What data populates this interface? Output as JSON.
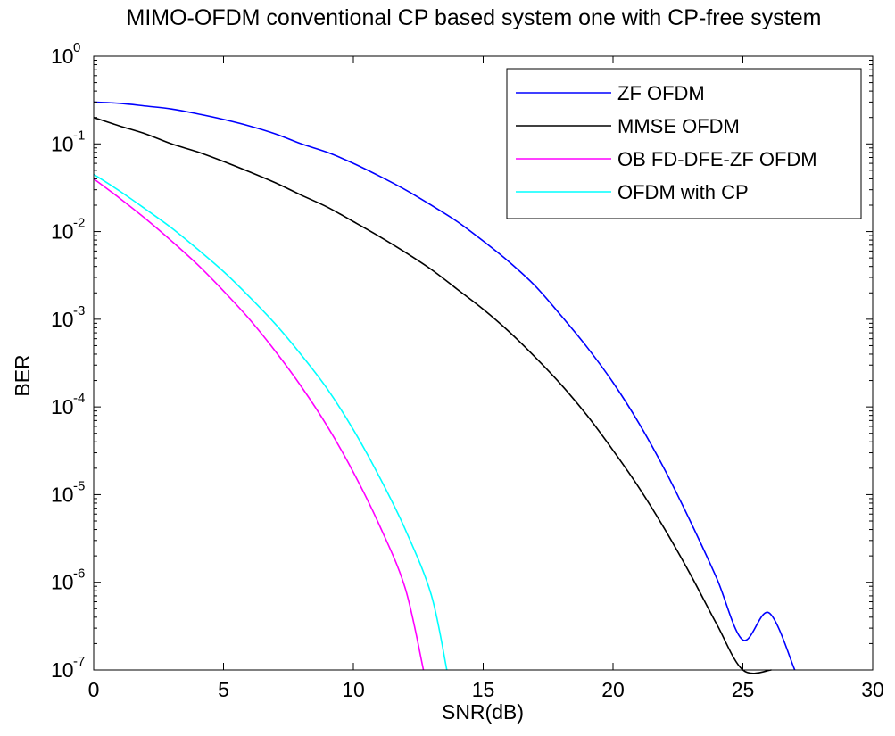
{
  "chart_data": {
    "type": "line",
    "title": "MIMO-OFDM conventional CP based system one with CP-free system",
    "xlabel": "SNR(dB)",
    "ylabel": "BER",
    "xlim": [
      0,
      30
    ],
    "ylim": [
      1e-07,
      1
    ],
    "yscale": "log",
    "grid": false,
    "legend_position": "top-right",
    "x_ticks": [
      0,
      5,
      10,
      15,
      20,
      25,
      30
    ],
    "x_tick_labels": [
      "0",
      "5",
      "10",
      "15",
      "20",
      "25",
      "30"
    ],
    "y_ticks": [
      1e-07,
      1e-06,
      1e-05,
      0.0001,
      0.001,
      0.01,
      0.1,
      1
    ],
    "y_tick_labels": [
      {
        "base": "10",
        "exp": "-7"
      },
      {
        "base": "10",
        "exp": "-6"
      },
      {
        "base": "10",
        "exp": "-5"
      },
      {
        "base": "10",
        "exp": "-4"
      },
      {
        "base": "10",
        "exp": "-3"
      },
      {
        "base": "10",
        "exp": "-2"
      },
      {
        "base": "10",
        "exp": "-1"
      },
      {
        "base": "10",
        "exp": "0"
      }
    ],
    "series": [
      {
        "name": "ZF OFDM",
        "color": "#0000ff",
        "x": [
          0,
          1,
          2,
          3,
          4,
          5,
          6,
          7,
          8,
          9,
          10,
          11,
          12,
          13,
          14,
          15,
          16,
          17,
          18,
          19,
          20,
          21,
          22,
          23,
          24,
          25,
          26,
          27
        ],
        "y": [
          0.3,
          0.29,
          0.27,
          0.25,
          0.22,
          0.19,
          0.16,
          0.13,
          0.1,
          0.08,
          0.06,
          0.043,
          0.03,
          0.02,
          0.013,
          0.0078,
          0.0045,
          0.0024,
          0.0011,
          0.00048,
          0.00019,
          6.5e-05,
          1.9e-05,
          4.8e-06,
          1.1e-06,
          2.2e-07,
          4.5e-07,
          1e-07
        ]
      },
      {
        "name": "MMSE OFDM",
        "color": "#000000",
        "x": [
          0,
          1,
          2,
          3,
          4,
          5,
          6,
          7,
          8,
          9,
          10,
          11,
          12,
          13,
          14,
          15,
          16,
          17,
          18,
          19,
          20,
          21,
          22,
          23,
          24,
          25,
          26.1
        ],
        "y": [
          0.2,
          0.16,
          0.13,
          0.1,
          0.081,
          0.063,
          0.048,
          0.036,
          0.026,
          0.019,
          0.013,
          0.0088,
          0.0058,
          0.0037,
          0.0022,
          0.0013,
          0.00072,
          0.00037,
          0.00018,
          8e-05,
          3.2e-05,
          1.2e-05,
          4e-06,
          1.2e-06,
          3.3e-07,
          8e-08,
          1e-07
        ]
      },
      {
        "name": "OB FD-DFE-ZF OFDM",
        "color": "#ff00ff",
        "x": [
          0,
          1,
          2,
          3,
          4,
          5,
          6,
          7,
          8,
          9,
          10,
          11,
          12,
          12.7
        ],
        "y": [
          0.04,
          0.024,
          0.014,
          0.0078,
          0.0042,
          0.0021,
          0.001,
          0.00043,
          0.00017,
          6e-05,
          1.8e-05,
          4.5e-06,
          8.5e-07,
          1e-07
        ]
      },
      {
        "name": "OFDM with CP",
        "color": "#00ffff",
        "x": [
          0,
          1,
          2,
          3,
          4,
          5,
          6,
          7,
          8,
          9,
          10,
          11,
          12,
          13,
          13.6
        ],
        "y": [
          0.045,
          0.029,
          0.018,
          0.011,
          0.0063,
          0.0035,
          0.0018,
          0.00088,
          0.00039,
          0.00016,
          5.5e-05,
          1.6e-05,
          4e-06,
          7.2e-07,
          1e-07
        ]
      }
    ]
  }
}
